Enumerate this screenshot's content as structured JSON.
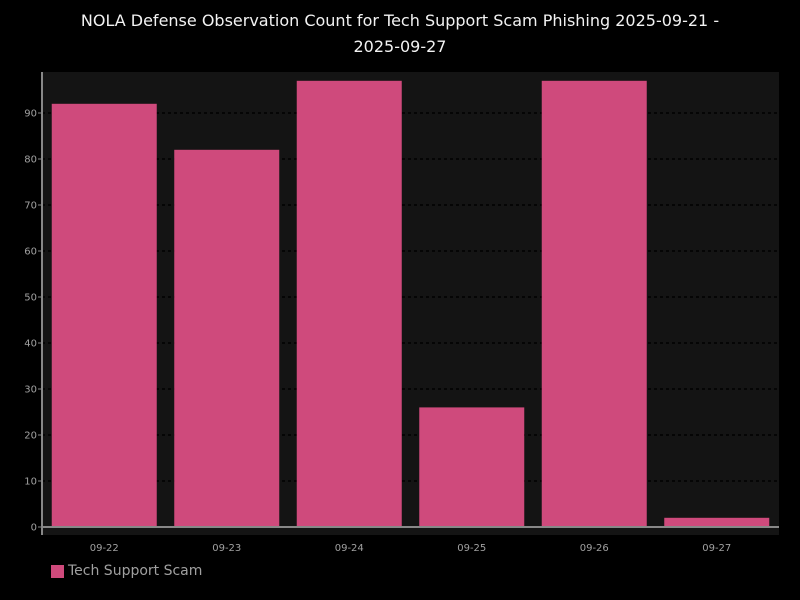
{
  "chart_data": {
    "type": "bar",
    "title_lines": [
      "NOLA Defense Observation Count for Tech Support Scam Phishing 2025-09-21 -",
      "2025-09-27"
    ],
    "categories": [
      "09-22",
      "09-23",
      "09-24",
      "09-25",
      "09-26",
      "09-27"
    ],
    "series": [
      {
        "name": "Tech Support Scam",
        "values": [
          92,
          82,
          97,
          26,
          97,
          2
        ]
      }
    ],
    "ylim": [
      0,
      98
    ],
    "yticks": [
      0,
      10,
      20,
      30,
      40,
      50,
      60,
      70,
      80,
      90
    ],
    "grid": true,
    "legend_position": "bottom-left"
  },
  "colors": {
    "bar": "#cf4a7c",
    "plot_background": "#141414",
    "grid": "#050505",
    "axis": "#888888"
  }
}
